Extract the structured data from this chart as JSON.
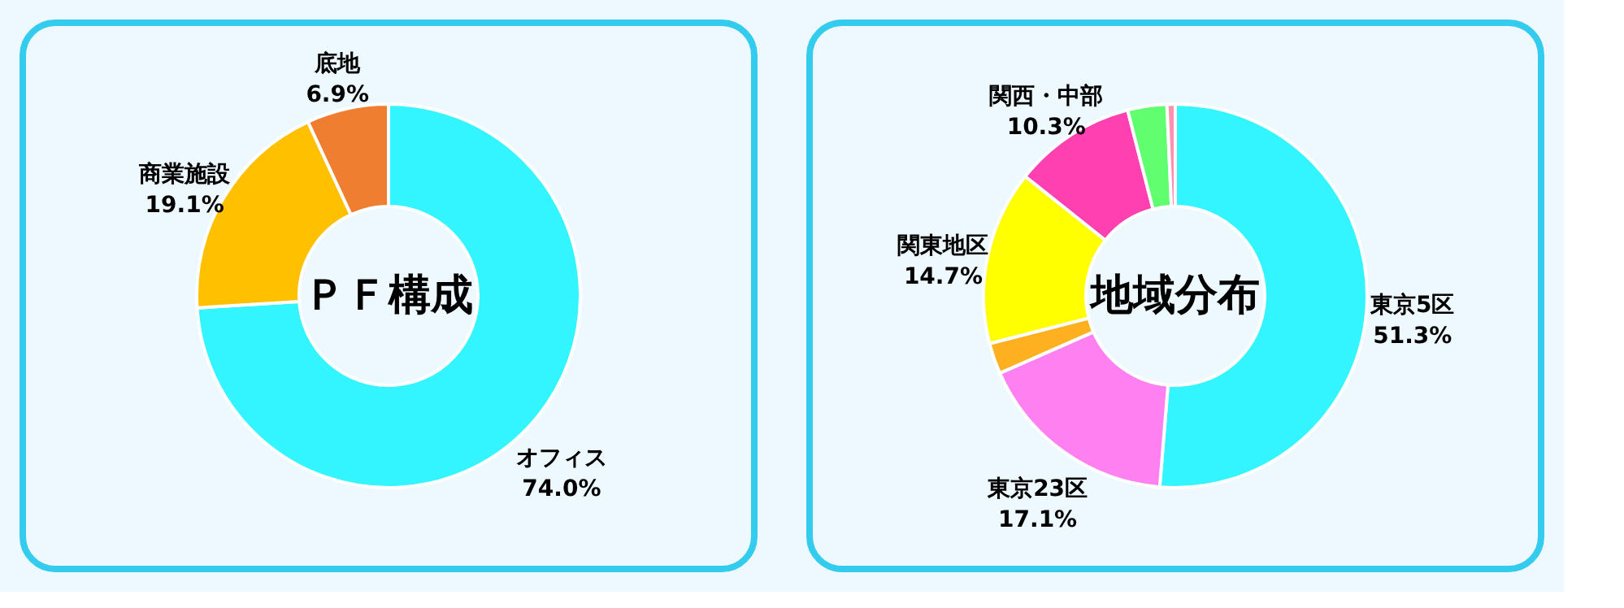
{
  "chart_data": [
    {
      "type": "donut",
      "title": "ＰＦ構成",
      "categories": [
        "オフィス",
        "商業施設",
        "底地"
      ],
      "values": [
        74.0,
        19.1,
        6.9
      ],
      "colors": [
        "#33f5ff",
        "#ffc000",
        "#f07e30"
      ],
      "value_labels": [
        "74.0%",
        "19.1%",
        "6.9%"
      ]
    },
    {
      "type": "donut",
      "title": "地域分布",
      "categories": [
        "東京5区",
        "東京23区",
        null,
        "関東地区",
        "関西・中部",
        null,
        null
      ],
      "values": [
        51.3,
        17.1,
        2.6,
        14.7,
        10.3,
        3.3,
        0.7
      ],
      "colors": [
        "#33f5ff",
        "#ff80f0",
        "#ffb020",
        "#ffff00",
        "#ff40b0",
        "#60ff70",
        "#ff90b0"
      ],
      "value_labels": [
        "51.3%",
        "17.1%",
        null,
        "14.7%",
        "10.3%",
        null,
        null
      ]
    }
  ]
}
